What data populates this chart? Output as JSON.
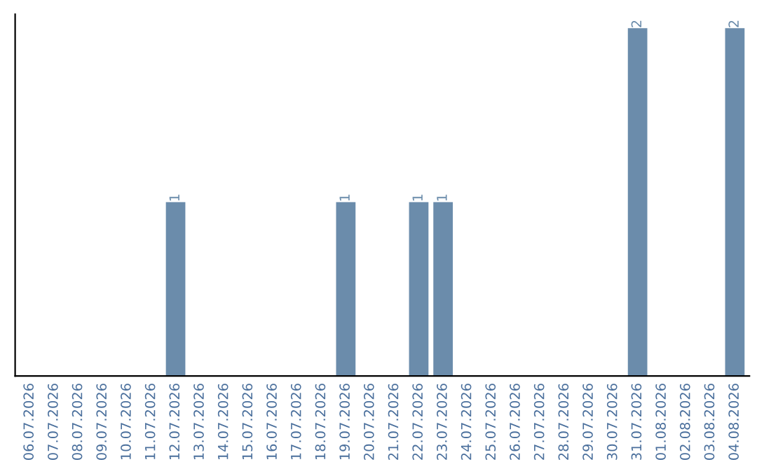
{
  "chart_data": {
    "type": "bar",
    "categories": [
      "06.07.2026",
      "07.07.2026",
      "08.07.2026",
      "09.07.2026",
      "10.07.2026",
      "11.07.2026",
      "12.07.2026",
      "13.07.2026",
      "14.07.2026",
      "15.07.2026",
      "16.07.2026",
      "17.07.2026",
      "18.07.2026",
      "19.07.2026",
      "20.07.2026",
      "21.07.2026",
      "22.07.2026",
      "23.07.2026",
      "24.07.2026",
      "25.07.2026",
      "26.07.2026",
      "27.07.2026",
      "28.07.2026",
      "29.07.2026",
      "30.07.2026",
      "31.07.2026",
      "01.08.2026",
      "02.08.2026",
      "03.08.2026",
      "04.08.2026"
    ],
    "values": [
      0,
      0,
      0,
      0,
      0,
      0,
      1,
      0,
      0,
      0,
      0,
      0,
      0,
      1,
      0,
      0,
      1,
      1,
      0,
      0,
      0,
      0,
      0,
      0,
      0,
      2,
      0,
      0,
      0,
      2
    ],
    "value_labels": [
      null,
      null,
      null,
      null,
      null,
      null,
      "1",
      null,
      null,
      null,
      null,
      null,
      null,
      "1",
      null,
      null,
      "1",
      "1",
      null,
      null,
      null,
      null,
      null,
      null,
      null,
      "2",
      null,
      null,
      null,
      "2"
    ],
    "color": "#6b8cab",
    "grid": false,
    "legend": false,
    "tick_labels": "x"
  }
}
